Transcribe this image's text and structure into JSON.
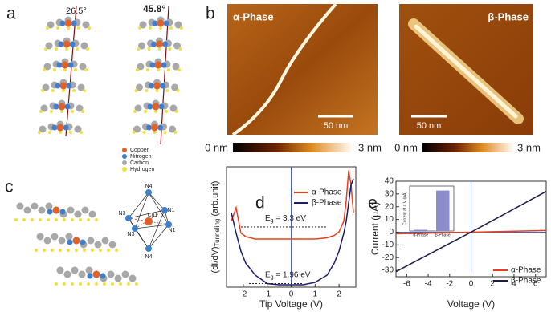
{
  "panel_a": {
    "label": "a",
    "angles": [
      "26.5°",
      "45.8°"
    ],
    "legend": [
      {
        "name": "Copper",
        "color": "#e0622a"
      },
      {
        "name": "Nitrogen",
        "color": "#3a7fd0"
      },
      {
        "name": "Carbon",
        "color": "#a8a8a8"
      },
      {
        "name": "Hydrogen",
        "color": "#f0e040"
      }
    ]
  },
  "panel_b": {
    "label": "b",
    "images": [
      {
        "title": "α-Phase",
        "scale_bar": "50 nm",
        "colorbar": [
          "0 nm",
          "3 nm"
        ]
      },
      {
        "title": "β-Phase",
        "scale_bar": "50 nm",
        "colorbar": [
          "0 nm",
          "3 nm"
        ]
      }
    ]
  },
  "panel_c": {
    "label": "c",
    "atoms": [
      "N4",
      "N3",
      "N1",
      "Cu1",
      "N1",
      "N3",
      "N4"
    ]
  },
  "panel_d": {
    "label": "d",
    "type": "line",
    "x_label": "Tip Voltage (V)",
    "y_label": {
      "main": "(dI/dV)",
      "sub": "Tunneling",
      "unit": " (arb.unit)"
    },
    "xlim": [
      -2.7,
      2.7
    ],
    "ylim": [
      0,
      1
    ],
    "xticks": [
      -2,
      -1,
      0,
      1,
      2
    ],
    "series": [
      {
        "name": "α-Phase",
        "color": "#e8401c",
        "x": [
          -2.5,
          -2.3,
          -2.1,
          -1.9,
          -1.5,
          -1,
          -0.5,
          0,
          0.5,
          1,
          1.5,
          1.8,
          2.0,
          2.2,
          2.3,
          2.4,
          2.5,
          2.6
        ],
        "values": [
          0.55,
          0.66,
          0.45,
          0.42,
          0.4,
          0.4,
          0.4,
          0.4,
          0.4,
          0.4,
          0.41,
          0.43,
          0.46,
          0.55,
          0.72,
          0.97,
          0.85,
          0.62
        ]
      },
      {
        "name": "β-Phase",
        "color": "#1c1c6c",
        "x": [
          -2.5,
          -2.3,
          -2.1,
          -1.9,
          -1.5,
          -1,
          -0.5,
          0,
          0.5,
          1,
          1.5,
          1.8,
          2.0,
          2.2,
          2.3,
          2.4,
          2.5,
          2.6
        ],
        "values": [
          0.62,
          0.45,
          0.3,
          0.2,
          0.1,
          0.03,
          0.02,
          0.02,
          0.02,
          0.04,
          0.1,
          0.2,
          0.3,
          0.45,
          0.55,
          0.7,
          0.85,
          0.9
        ]
      }
    ],
    "annotations": [
      {
        "symbol": "E",
        "sub": "g",
        "text": " = 3.3 eV"
      },
      {
        "symbol": "E",
        "sub": "g",
        "text": " = 1.96 eV"
      }
    ]
  },
  "panel_e": {
    "label": "e",
    "type": "line",
    "x_label": "Voltage (V)",
    "y_label": "Current (μA)",
    "xlim": [
      -7,
      7
    ],
    "ylim": [
      -35,
      40
    ],
    "xticks": [
      -6,
      -4,
      -2,
      0,
      2,
      4,
      6
    ],
    "yticks": [
      -30,
      -20,
      -10,
      0,
      10,
      20,
      30,
      40
    ],
    "series": [
      {
        "name": "α-Phase",
        "color": "#e8401c",
        "x": [
          -7,
          0,
          7
        ],
        "values": [
          -1.3,
          0,
          1.3
        ]
      },
      {
        "name": "β-Phase",
        "color": "#1c1c4c",
        "x": [
          -7,
          0,
          7
        ],
        "values": [
          -31,
          0,
          32
        ]
      }
    ],
    "inset": {
      "type": "bar",
      "y_label": "Current at 4 V (μA)",
      "categories": [
        "α-Phase",
        "β-Phase"
      ],
      "values": [
        0.4,
        13.5
      ],
      "ylim": [
        0,
        15
      ],
      "color": "#8c8ccc"
    }
  }
}
